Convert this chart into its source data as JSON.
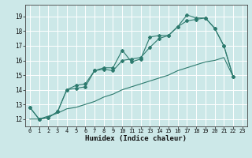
{
  "xlabel": "Humidex (Indice chaleur)",
  "bg_color": "#cce8e8",
  "line_color": "#2d7a6e",
  "grid_color": "#b8d8d8",
  "xlim": [
    -0.5,
    23.5
  ],
  "ylim": [
    11.5,
    19.8
  ],
  "xticks": [
    0,
    1,
    2,
    3,
    4,
    5,
    6,
    7,
    8,
    9,
    10,
    11,
    12,
    13,
    14,
    15,
    16,
    17,
    18,
    19,
    20,
    21,
    22,
    23
  ],
  "yticks": [
    12,
    13,
    14,
    15,
    16,
    17,
    18,
    19
  ],
  "line1_x": [
    0,
    1,
    2,
    3,
    4,
    5,
    6,
    7,
    8,
    9,
    10,
    11,
    12,
    13,
    14,
    15,
    16,
    17,
    18,
    19,
    20,
    21,
    22
  ],
  "line1_y": [
    12.8,
    12.0,
    12.1,
    12.5,
    14.0,
    14.3,
    14.4,
    15.3,
    15.5,
    15.5,
    16.7,
    15.9,
    16.1,
    17.6,
    17.7,
    17.7,
    18.3,
    19.1,
    18.9,
    18.9,
    18.2,
    17.0,
    14.9
  ],
  "line2_x": [
    0,
    1,
    2,
    3,
    4,
    5,
    6,
    7,
    8,
    9,
    10,
    11,
    12,
    13,
    14,
    15,
    16,
    17,
    18,
    19,
    20,
    21,
    22
  ],
  "line2_y": [
    12.8,
    12.0,
    12.1,
    12.5,
    14.0,
    14.1,
    14.2,
    15.3,
    15.4,
    15.3,
    16.0,
    16.1,
    16.2,
    16.9,
    17.5,
    17.7,
    18.3,
    18.7,
    18.8,
    18.9,
    18.2,
    17.0,
    14.9
  ],
  "line3_x": [
    0,
    1,
    2,
    3,
    4,
    5,
    6,
    7,
    8,
    9,
    10,
    11,
    12,
    13,
    14,
    15,
    16,
    17,
    18,
    19,
    20,
    21,
    22
  ],
  "line3_y": [
    12.0,
    12.0,
    12.2,
    12.4,
    12.7,
    12.8,
    13.0,
    13.2,
    13.5,
    13.7,
    14.0,
    14.2,
    14.4,
    14.6,
    14.8,
    15.0,
    15.3,
    15.5,
    15.7,
    15.9,
    16.0,
    16.2,
    14.9
  ]
}
